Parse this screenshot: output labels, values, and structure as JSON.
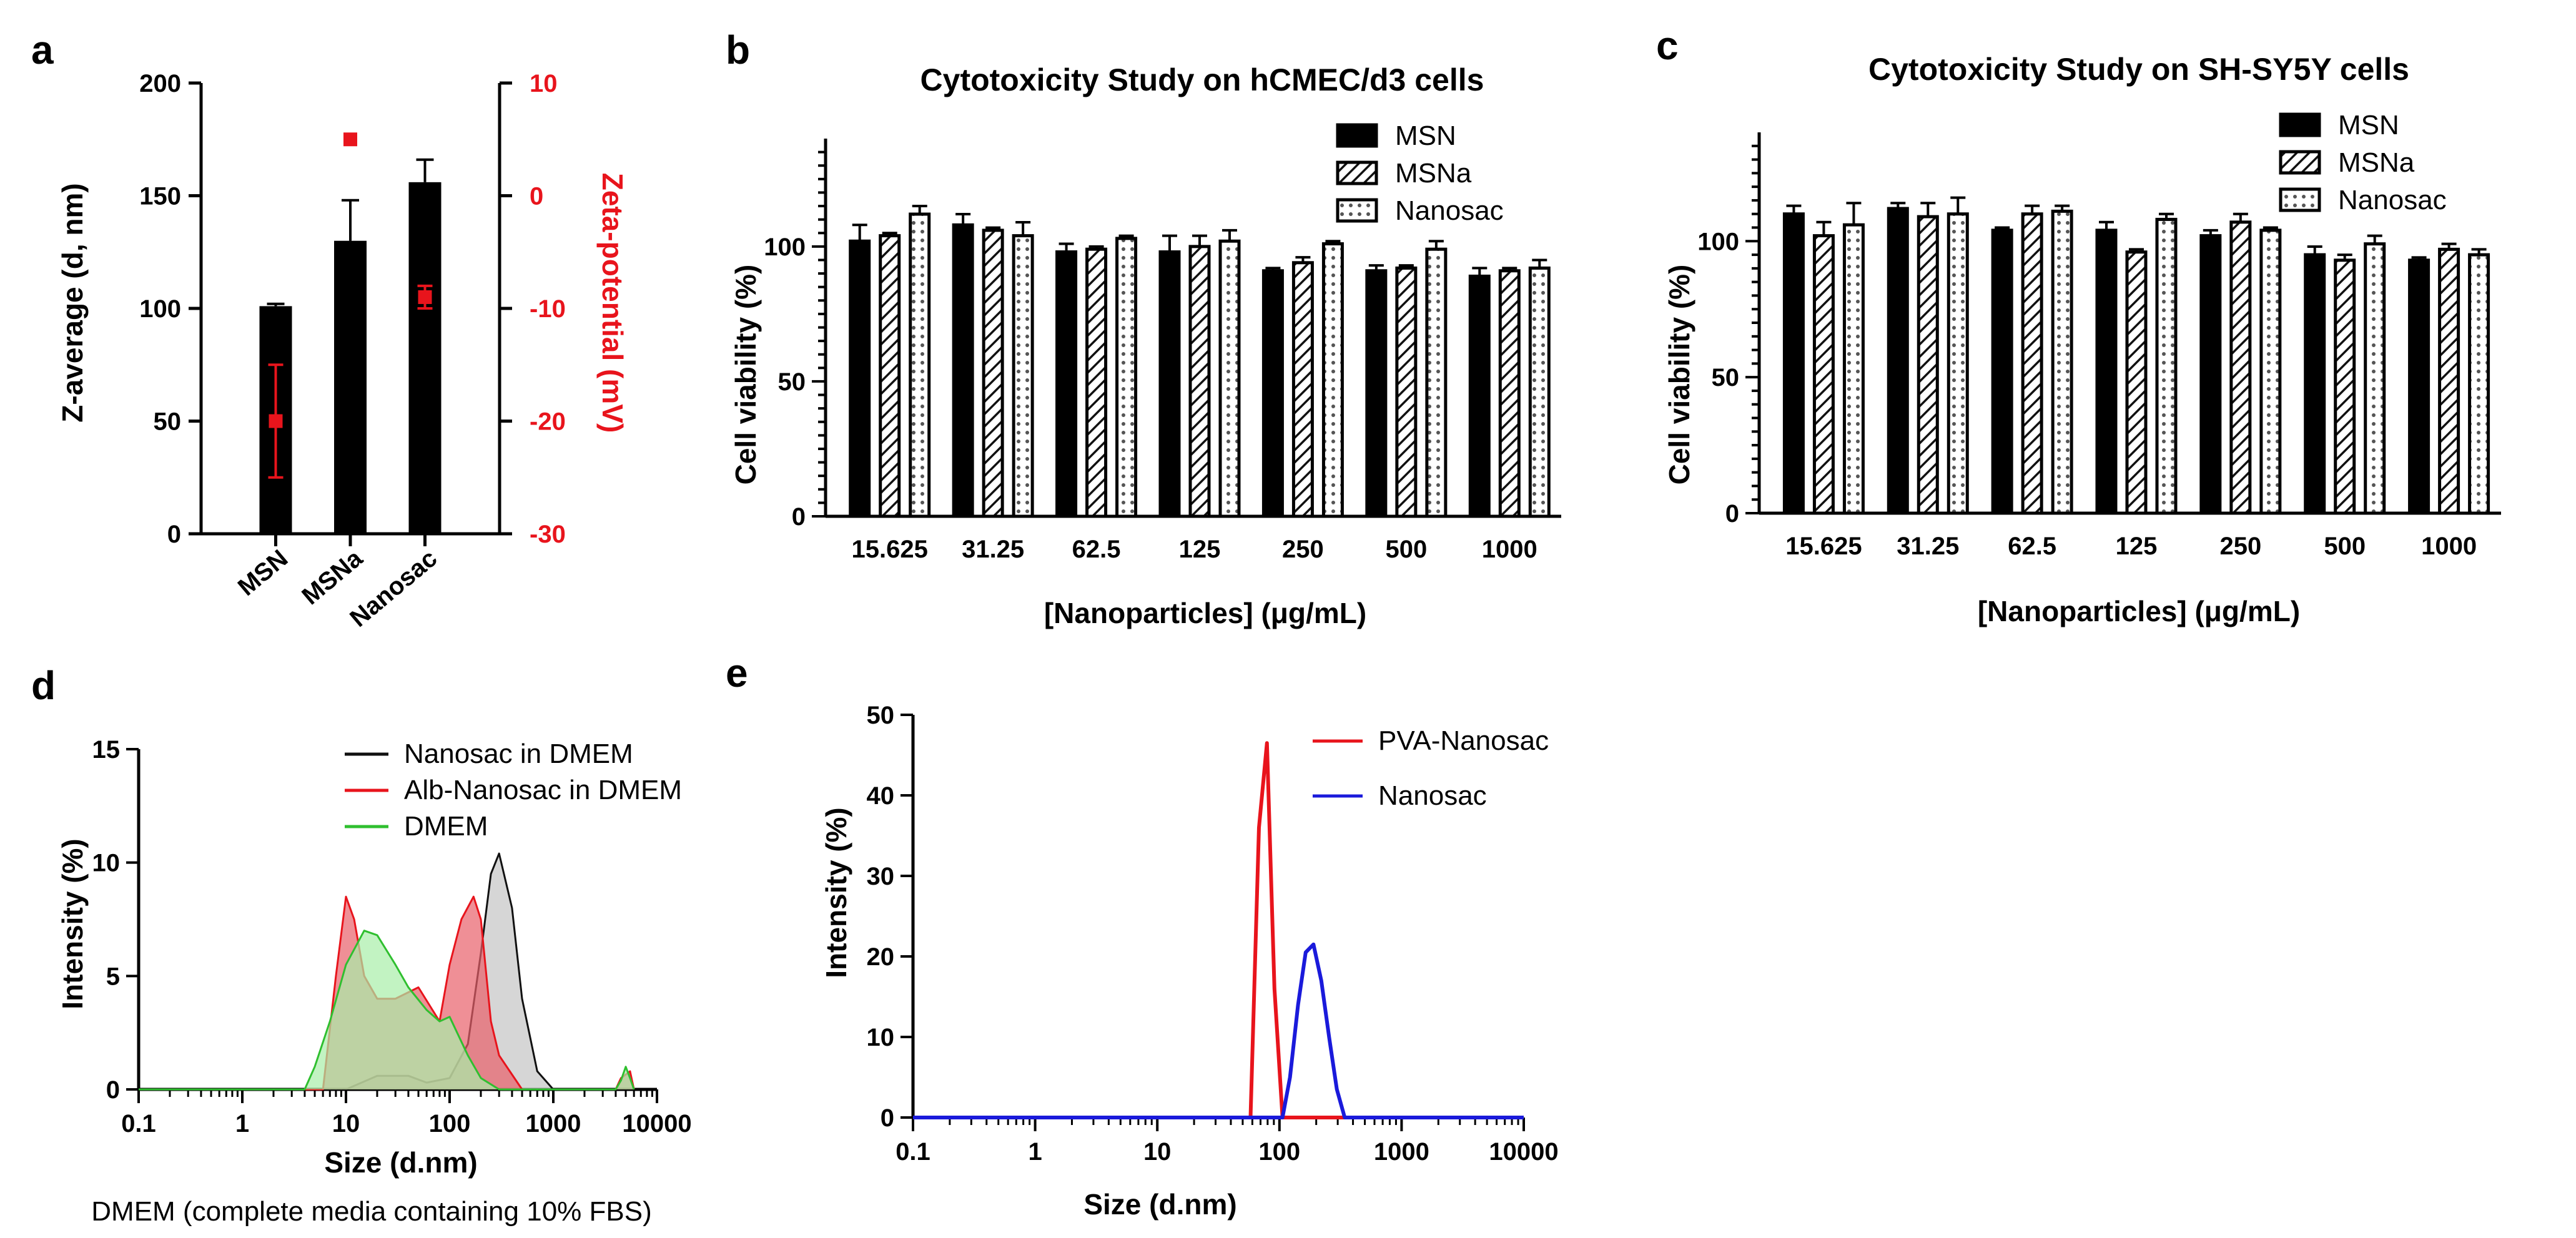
{
  "panel_labels": {
    "a": "a",
    "b": "b",
    "c": "c",
    "d": "d",
    "e": "e"
  },
  "notes": {
    "d_caption": "DMEM (complete media containing 10% FBS)"
  },
  "chart_data": [
    {
      "id": "a",
      "type": "bar",
      "title": "",
      "categories": [
        "MSN",
        "MSNa",
        "Nanosac"
      ],
      "ylabel": "Z-average (d, nm)",
      "ylim": [
        0,
        200
      ],
      "yticks": [
        0,
        50,
        100,
        150,
        200
      ],
      "y2label": "Zeta-potential (mV)",
      "y2lim": [
        -30,
        10
      ],
      "y2ticks": [
        -30,
        -20,
        -10,
        0,
        10
      ],
      "colors": {
        "bars": "#000000",
        "zeta": "#e8141c"
      },
      "series": [
        {
          "axis": "left",
          "values": [
            101,
            130,
            156
          ],
          "errors": [
            1,
            18,
            10
          ]
        },
        {
          "axis": "right",
          "values": [
            -20,
            5,
            -9
          ],
          "errors": [
            5,
            0,
            1
          ]
        }
      ]
    },
    {
      "id": "b",
      "type": "bar",
      "title": "Cytotoxicity Study on hCMEC/d3 cells",
      "categories": [
        "15.625",
        "31.25",
        "62.5",
        "125",
        "250",
        "500",
        "1000"
      ],
      "xlabel": "[Nanoparticles] (μg/mL)",
      "ylabel": "Cell viability (%)",
      "ylim": [
        0,
        140
      ],
      "yticks": [
        0,
        50,
        100
      ],
      "legend_position": "top-right",
      "series": [
        {
          "name": "MSN",
          "pattern": "solid",
          "values": [
            102,
            108,
            98,
            98,
            91,
            91,
            89
          ],
          "errors": [
            6,
            4,
            3,
            6,
            1,
            2,
            3
          ]
        },
        {
          "name": "MSNa",
          "pattern": "hatch",
          "values": [
            104,
            106,
            99,
            100,
            94,
            92,
            91
          ],
          "errors": [
            1,
            1,
            1,
            4,
            2,
            1,
            1
          ]
        },
        {
          "name": "Nanosac",
          "pattern": "dots",
          "values": [
            112,
            104,
            103,
            102,
            101,
            99,
            92
          ],
          "errors": [
            3,
            5,
            1,
            4,
            1,
            3,
            3
          ]
        }
      ]
    },
    {
      "id": "c",
      "type": "bar",
      "title": "Cytotoxicity Study on SH-SY5Y cells",
      "categories": [
        "15.625",
        "31.25",
        "62.5",
        "125",
        "250",
        "500",
        "1000"
      ],
      "xlabel": "[Nanoparticles] (μg/mL)",
      "ylabel": "Cell viability (%)",
      "ylim": [
        0,
        140
      ],
      "yticks": [
        0,
        50,
        100
      ],
      "legend_position": "top-right",
      "series": [
        {
          "name": "MSN",
          "pattern": "solid",
          "values": [
            110,
            112,
            104,
            104,
            102,
            95,
            93
          ],
          "errors": [
            3,
            2,
            1,
            3,
            2,
            3,
            1
          ]
        },
        {
          "name": "MSNa",
          "pattern": "hatch",
          "values": [
            102,
            109,
            110,
            96,
            107,
            93,
            97
          ],
          "errors": [
            5,
            5,
            3,
            1,
            3,
            2,
            2
          ]
        },
        {
          "name": "Nanosac",
          "pattern": "dots",
          "values": [
            106,
            110,
            111,
            108,
            104,
            99,
            95
          ],
          "errors": [
            8,
            6,
            2,
            2,
            1,
            3,
            2
          ]
        }
      ]
    },
    {
      "id": "d",
      "type": "area",
      "title": "",
      "xlabel": "Size (d.nm)",
      "ylabel": "Intensity (%)",
      "xscale": "log",
      "xlim": [
        0.1,
        10000
      ],
      "xticks": [
        0.1,
        1,
        10,
        100,
        1000,
        10000
      ],
      "xtick_labels": [
        "0.1",
        "1",
        "10",
        "100",
        "1000",
        "10000"
      ],
      "ylim": [
        0,
        15
      ],
      "yticks": [
        0,
        5,
        10,
        15
      ],
      "legend_position": "top-center",
      "series": [
        {
          "name": "Nanosac in DMEM",
          "color": "#111111",
          "fill": "#c4c4c4",
          "x": [
            0.1,
            0.4,
            10,
            20,
            40,
            60,
            100,
            150,
            200,
            250,
            300,
            400,
            500,
            700,
            1000
          ],
          "y": [
            0,
            0,
            0,
            0.6,
            0.6,
            0.3,
            0.5,
            2,
            6,
            9.5,
            10.4,
            8,
            4,
            0.8,
            0
          ]
        },
        {
          "name": "Alb-Nanosac in DMEM",
          "color": "#e8141c",
          "fill": "#e8606a",
          "x": [
            0.1,
            0.4,
            6,
            8,
            10,
            12,
            15,
            20,
            30,
            50,
            80,
            100,
            130,
            170,
            200,
            250,
            300,
            500,
            4000,
            4500,
            5500,
            6000
          ],
          "y": [
            0,
            0,
            0,
            5,
            8.5,
            7.5,
            5,
            4,
            4,
            4.5,
            3,
            5.5,
            7.5,
            8.5,
            7.5,
            3,
            1.5,
            0,
            0,
            0.5,
            0.8,
            0
          ]
        },
        {
          "name": "DMEM",
          "color": "#2fbf2f",
          "fill": "#a8eea8",
          "x": [
            0.1,
            0.4,
            4,
            5,
            7,
            10,
            15,
            20,
            30,
            40,
            60,
            80,
            100,
            150,
            200,
            300,
            4000,
            4500,
            5000,
            5500,
            6000
          ],
          "y": [
            0,
            0,
            0,
            1,
            3,
            5.5,
            7,
            6.8,
            5.5,
            4.5,
            3.5,
            3,
            3.2,
            1.5,
            0.5,
            0,
            0,
            0.4,
            1,
            0.5,
            0
          ]
        }
      ]
    },
    {
      "id": "e",
      "type": "line",
      "title": "",
      "xlabel": "Size (d.nm)",
      "ylabel": "Intensity (%)",
      "xscale": "log",
      "xlim": [
        0.1,
        10000
      ],
      "xticks": [
        0.1,
        1,
        10,
        100,
        1000,
        10000
      ],
      "xtick_labels": [
        "0.1",
        "1",
        "10",
        "100",
        "1000",
        "10000"
      ],
      "ylim": [
        0,
        50
      ],
      "yticks": [
        0,
        10,
        20,
        30,
        40,
        50
      ],
      "legend_position": "top-right",
      "series": [
        {
          "name": "PVA-Nanosac",
          "color": "#e8141c",
          "x": [
            0.1,
            0.4,
            58,
            68,
            79,
            91,
            106,
            10000
          ],
          "y": [
            0,
            0,
            0,
            36,
            46.5,
            16,
            0,
            0
          ]
        },
        {
          "name": "Nanosac",
          "color": "#1a1adb",
          "x": [
            0.1,
            0.4,
            106,
            122,
            142,
            164,
            190,
            220,
            255,
            295,
            342,
            10000
          ],
          "y": [
            0,
            0,
            0,
            5,
            14,
            20.5,
            21.5,
            17,
            10,
            3.5,
            0,
            0
          ]
        }
      ]
    }
  ]
}
